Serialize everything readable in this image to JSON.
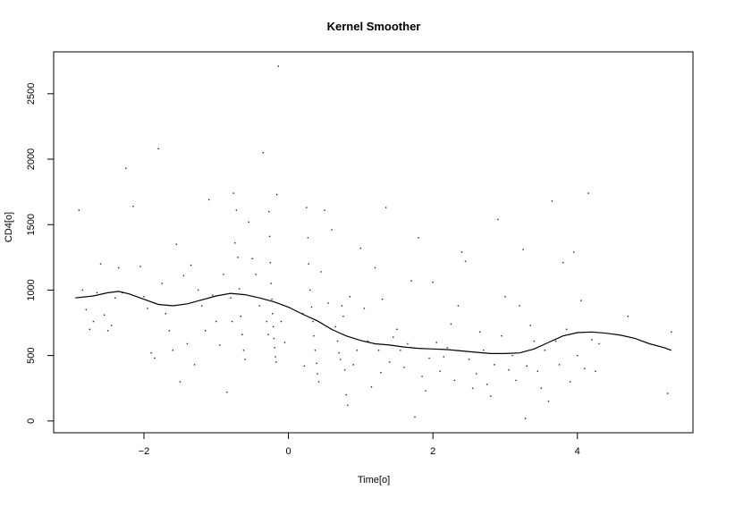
{
  "chart_data": {
    "type": "scatter",
    "title": "Kernel Smoother",
    "xlabel": "Time[o]",
    "ylabel": "CD4[o]",
    "xlim": [
      -3.25,
      5.6
    ],
    "ylim": [
      -90,
      2820
    ],
    "x_ticks": [
      -2,
      0,
      2,
      4
    ],
    "y_ticks": [
      0,
      500,
      1000,
      1500,
      2000,
      2500
    ],
    "x_tick_labels": [
      "−2",
      "0",
      "2",
      "4"
    ],
    "y_tick_labels": [
      "0",
      "500",
      "1000",
      "1500",
      "2000",
      "2500"
    ],
    "grid": false,
    "series": [
      {
        "kind": "points",
        "points": [
          [
            -2.9,
            1610
          ],
          [
            -2.85,
            1000
          ],
          [
            -2.8,
            850
          ],
          [
            -2.75,
            700
          ],
          [
            -2.7,
            760
          ],
          [
            -2.65,
            980
          ],
          [
            -2.6,
            1200
          ],
          [
            -2.55,
            810
          ],
          [
            -2.5,
            690
          ],
          [
            -2.45,
            730
          ],
          [
            -2.4,
            940
          ],
          [
            -2.35,
            1170
          ],
          [
            -2.3,
            980
          ],
          [
            -2.25,
            1930
          ],
          [
            -2.15,
            1640
          ],
          [
            -2.05,
            1180
          ],
          [
            -2.0,
            950
          ],
          [
            -1.95,
            860
          ],
          [
            -1.9,
            520
          ],
          [
            -1.85,
            480
          ],
          [
            -1.8,
            2080
          ],
          [
            -1.75,
            1050
          ],
          [
            -1.7,
            820
          ],
          [
            -1.65,
            690
          ],
          [
            -1.6,
            540
          ],
          [
            -1.55,
            1350
          ],
          [
            -1.5,
            300
          ],
          [
            -1.45,
            1110
          ],
          [
            -1.4,
            590
          ],
          [
            -1.35,
            1190
          ],
          [
            -1.3,
            430
          ],
          [
            -1.25,
            1000
          ],
          [
            -1.2,
            880
          ],
          [
            -1.15,
            690
          ],
          [
            -1.1,
            1690
          ],
          [
            -1.05,
            960
          ],
          [
            -1.0,
            760
          ],
          [
            -0.95,
            580
          ],
          [
            -0.9,
            1120
          ],
          [
            -0.85,
            220
          ],
          [
            -0.8,
            940
          ],
          [
            -0.78,
            760
          ],
          [
            -0.76,
            1740
          ],
          [
            -0.74,
            1360
          ],
          [
            -0.72,
            1610
          ],
          [
            -0.7,
            1250
          ],
          [
            -0.68,
            1010
          ],
          [
            -0.66,
            800
          ],
          [
            -0.64,
            660
          ],
          [
            -0.62,
            540
          ],
          [
            -0.6,
            470
          ],
          [
            -0.55,
            1520
          ],
          [
            -0.5,
            1240
          ],
          [
            -0.45,
            1120
          ],
          [
            -0.4,
            880
          ],
          [
            -0.35,
            2050
          ],
          [
            -0.3,
            760
          ],
          [
            -0.28,
            660
          ],
          [
            -0.27,
            1600
          ],
          [
            -0.26,
            1410
          ],
          [
            -0.25,
            1210
          ],
          [
            -0.24,
            1050
          ],
          [
            -0.23,
            930
          ],
          [
            -0.22,
            820
          ],
          [
            -0.21,
            720
          ],
          [
            -0.2,
            630
          ],
          [
            -0.19,
            560
          ],
          [
            -0.18,
            490
          ],
          [
            -0.17,
            450
          ],
          [
            -0.16,
            1730
          ],
          [
            -0.14,
            2710
          ],
          [
            -0.1,
            760
          ],
          [
            -0.05,
            600
          ],
          [
            0.2,
            820
          ],
          [
            0.22,
            420
          ],
          [
            0.25,
            1630
          ],
          [
            0.27,
            1400
          ],
          [
            0.28,
            1200
          ],
          [
            0.3,
            1000
          ],
          [
            0.32,
            870
          ],
          [
            0.34,
            760
          ],
          [
            0.35,
            650
          ],
          [
            0.37,
            540
          ],
          [
            0.39,
            440
          ],
          [
            0.4,
            360
          ],
          [
            0.42,
            300
          ],
          [
            0.45,
            1140
          ],
          [
            0.5,
            1610
          ],
          [
            0.55,
            900
          ],
          [
            0.6,
            1460
          ],
          [
            0.65,
            720
          ],
          [
            0.68,
            610
          ],
          [
            0.7,
            520
          ],
          [
            0.72,
            470
          ],
          [
            0.74,
            880
          ],
          [
            0.76,
            800
          ],
          [
            0.78,
            390
          ],
          [
            0.8,
            200
          ],
          [
            0.82,
            120
          ],
          [
            0.85,
            950
          ],
          [
            0.9,
            430
          ],
          [
            0.95,
            540
          ],
          [
            1.0,
            1320
          ],
          [
            1.05,
            860
          ],
          [
            1.1,
            610
          ],
          [
            1.15,
            260
          ],
          [
            1.2,
            1170
          ],
          [
            1.25,
            540
          ],
          [
            1.28,
            370
          ],
          [
            1.3,
            930
          ],
          [
            1.35,
            1630
          ],
          [
            1.4,
            450
          ],
          [
            1.45,
            640
          ],
          [
            1.5,
            700
          ],
          [
            1.55,
            540
          ],
          [
            1.6,
            410
          ],
          [
            1.65,
            590
          ],
          [
            1.7,
            1070
          ],
          [
            1.75,
            30
          ],
          [
            1.8,
            1400
          ],
          [
            1.85,
            340
          ],
          [
            1.9,
            230
          ],
          [
            1.95,
            480
          ],
          [
            2.0,
            1060
          ],
          [
            2.05,
            600
          ],
          [
            2.1,
            380
          ],
          [
            2.15,
            490
          ],
          [
            2.2,
            560
          ],
          [
            2.25,
            740
          ],
          [
            2.3,
            310
          ],
          [
            2.35,
            880
          ],
          [
            2.4,
            1290
          ],
          [
            2.45,
            1220
          ],
          [
            2.5,
            470
          ],
          [
            2.55,
            250
          ],
          [
            2.6,
            360
          ],
          [
            2.65,
            680
          ],
          [
            2.7,
            540
          ],
          [
            2.75,
            280
          ],
          [
            2.8,
            190
          ],
          [
            2.85,
            430
          ],
          [
            2.9,
            1540
          ],
          [
            2.95,
            650
          ],
          [
            3.0,
            950
          ],
          [
            3.05,
            390
          ],
          [
            3.1,
            500
          ],
          [
            3.15,
            310
          ],
          [
            3.2,
            880
          ],
          [
            3.25,
            1310
          ],
          [
            3.28,
            20
          ],
          [
            3.3,
            420
          ],
          [
            3.35,
            730
          ],
          [
            3.4,
            610
          ],
          [
            3.45,
            380
          ],
          [
            3.5,
            250
          ],
          [
            3.55,
            540
          ],
          [
            3.6,
            150
          ],
          [
            3.65,
            1680
          ],
          [
            3.7,
            610
          ],
          [
            3.75,
            430
          ],
          [
            3.8,
            1210
          ],
          [
            3.85,
            700
          ],
          [
            3.9,
            300
          ],
          [
            3.95,
            1290
          ],
          [
            4.0,
            500
          ],
          [
            4.05,
            920
          ],
          [
            4.1,
            400
          ],
          [
            4.15,
            1740
          ],
          [
            4.2,
            620
          ],
          [
            4.25,
            380
          ],
          [
            4.3,
            590
          ],
          [
            4.7,
            800
          ],
          [
            5.25,
            210
          ],
          [
            5.3,
            680
          ]
        ]
      },
      {
        "kind": "line",
        "points": [
          [
            -2.95,
            940
          ],
          [
            -2.7,
            955
          ],
          [
            -2.5,
            980
          ],
          [
            -2.35,
            990
          ],
          [
            -2.2,
            970
          ],
          [
            -2.0,
            930
          ],
          [
            -1.8,
            890
          ],
          [
            -1.6,
            880
          ],
          [
            -1.4,
            895
          ],
          [
            -1.2,
            925
          ],
          [
            -1.0,
            955
          ],
          [
            -0.8,
            975
          ],
          [
            -0.6,
            965
          ],
          [
            -0.4,
            940
          ],
          [
            -0.2,
            910
          ],
          [
            0.0,
            870
          ],
          [
            0.2,
            815
          ],
          [
            0.4,
            765
          ],
          [
            0.6,
            700
          ],
          [
            0.8,
            650
          ],
          [
            1.0,
            615
          ],
          [
            1.2,
            590
          ],
          [
            1.4,
            580
          ],
          [
            1.6,
            565
          ],
          [
            1.8,
            555
          ],
          [
            2.0,
            550
          ],
          [
            2.2,
            545
          ],
          [
            2.4,
            535
          ],
          [
            2.6,
            525
          ],
          [
            2.8,
            515
          ],
          [
            3.0,
            515
          ],
          [
            3.2,
            520
          ],
          [
            3.4,
            550
          ],
          [
            3.6,
            600
          ],
          [
            3.8,
            650
          ],
          [
            4.0,
            675
          ],
          [
            4.2,
            680
          ],
          [
            4.4,
            670
          ],
          [
            4.6,
            655
          ],
          [
            4.8,
            630
          ],
          [
            5.0,
            590
          ],
          [
            5.2,
            560
          ],
          [
            5.3,
            540
          ]
        ]
      }
    ]
  }
}
